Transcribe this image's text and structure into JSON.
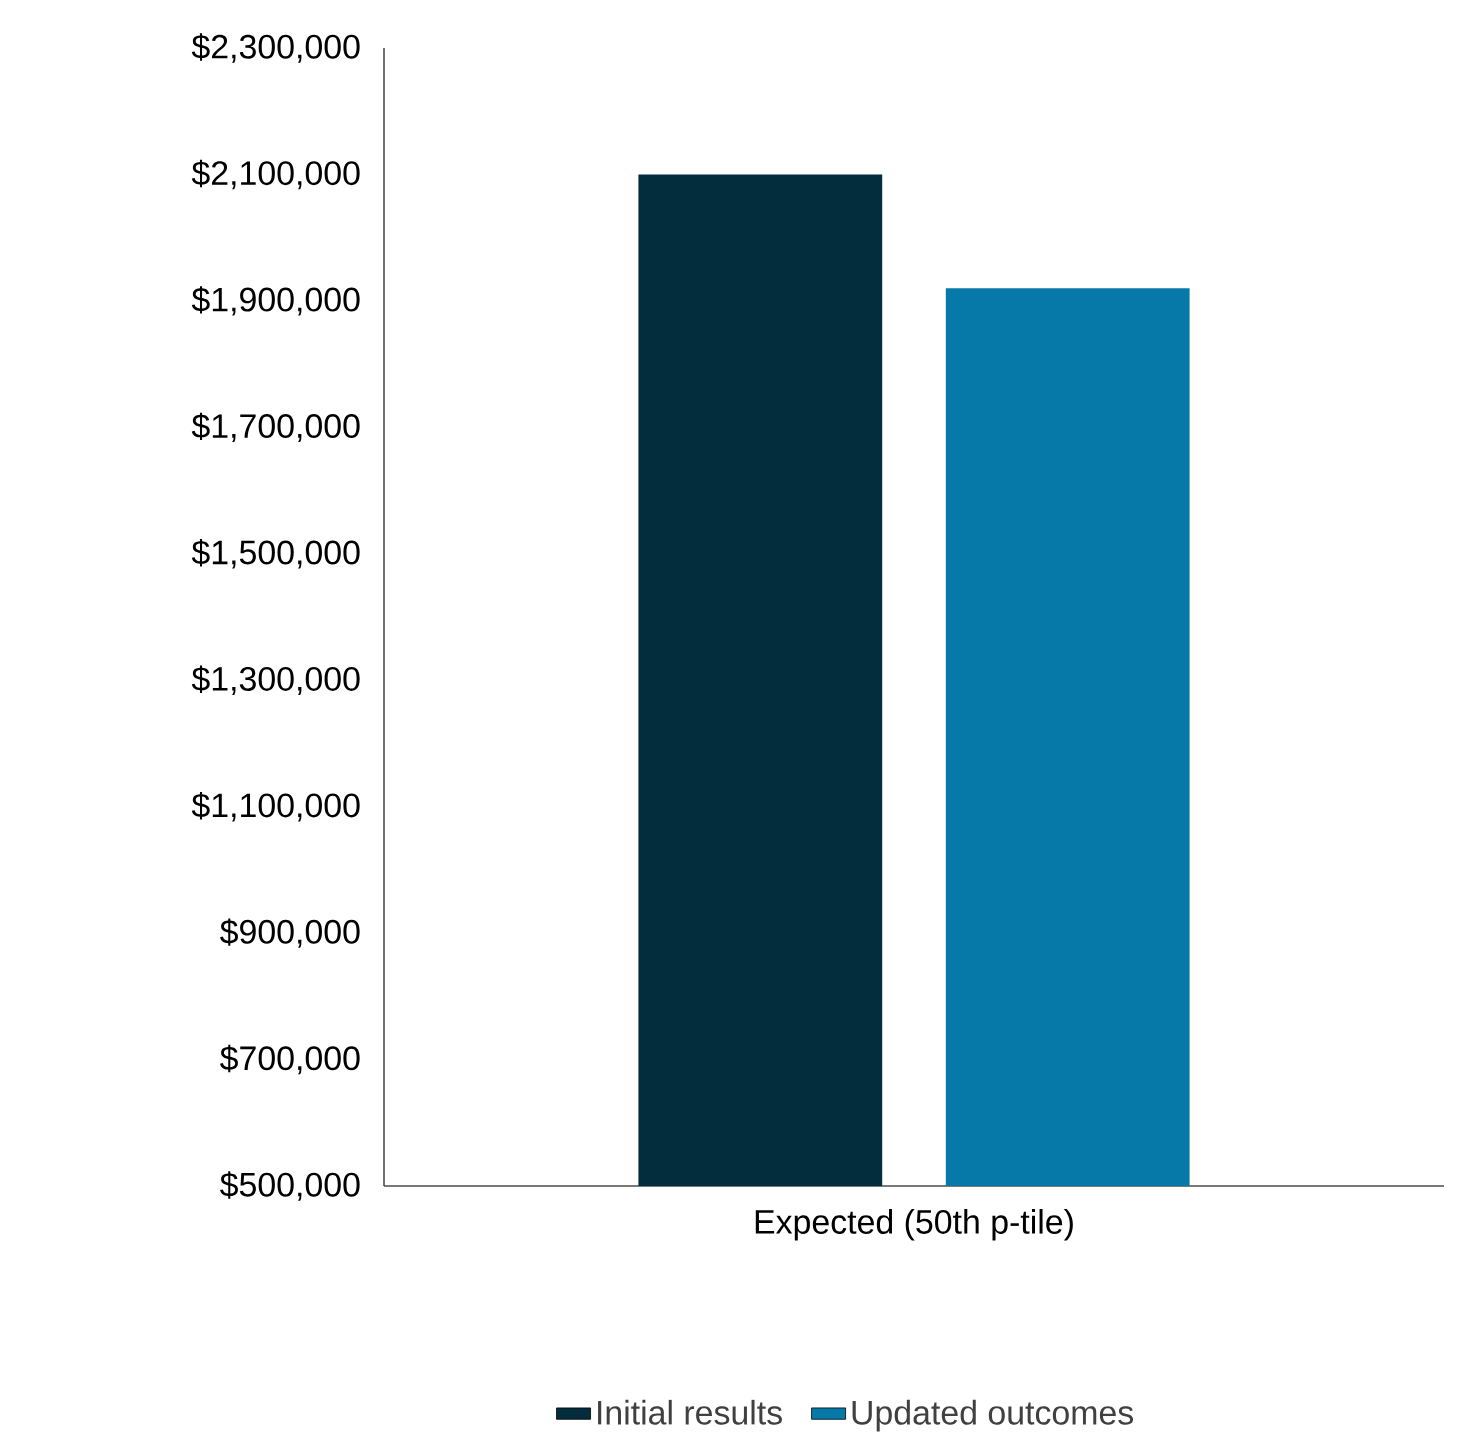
{
  "chart_data": {
    "type": "bar",
    "categories": [
      "Expected (50th p-tile)"
    ],
    "series": [
      {
        "name": "Initial results",
        "color": "#032d3d",
        "values": [
          2100000
        ]
      },
      {
        "name": "Updated outcomes",
        "color": "#0779a8",
        "values": [
          1920000
        ]
      }
    ],
    "ylim": [
      500000,
      2300000
    ],
    "yticks": [
      {
        "value": 500000,
        "label": "$500,000"
      },
      {
        "value": 700000,
        "label": "$700,000"
      },
      {
        "value": 900000,
        "label": "$900,000"
      },
      {
        "value": 1100000,
        "label": "$1,100,000"
      },
      {
        "value": 1300000,
        "label": "$1,300,000"
      },
      {
        "value": 1500000,
        "label": "$1,500,000"
      },
      {
        "value": 1700000,
        "label": "$1,700,000"
      },
      {
        "value": 1900000,
        "label": "$1,900,000"
      },
      {
        "value": 2100000,
        "label": "$2,100,000"
      },
      {
        "value": 2300000,
        "label": "$2,300,000"
      }
    ],
    "legend": "bottom"
  }
}
